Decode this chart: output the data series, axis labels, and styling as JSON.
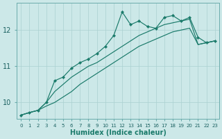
{
  "xlabel": "Humidex (Indice chaleur)",
  "background_color": "#cce8e8",
  "line_color": "#1a7a6a",
  "grid_color": "#aad0d0",
  "tick_label_color": "#1a6060",
  "xlim": [
    -0.5,
    23.5
  ],
  "ylim": [
    9.55,
    12.75
  ],
  "x": [
    0,
    1,
    2,
    3,
    4,
    5,
    6,
    7,
    8,
    9,
    10,
    11,
    12,
    13,
    14,
    15,
    16,
    17,
    18,
    19,
    20,
    21,
    22,
    23
  ],
  "line_zigzag": [
    9.65,
    9.72,
    9.78,
    10.0,
    10.6,
    10.7,
    10.95,
    11.1,
    11.2,
    11.35,
    11.55,
    11.85,
    12.5,
    12.15,
    12.25,
    12.1,
    12.05,
    12.35,
    12.4,
    12.25,
    12.35,
    11.8,
    11.65,
    11.7
  ],
  "line_mid": [
    9.65,
    9.72,
    9.78,
    10.0,
    10.3,
    10.5,
    10.7,
    10.85,
    11.0,
    11.1,
    11.25,
    11.4,
    11.55,
    11.7,
    11.85,
    11.95,
    12.05,
    12.15,
    12.2,
    12.25,
    12.3,
    11.6,
    11.65,
    11.7
  ],
  "line_low": [
    9.65,
    9.72,
    9.78,
    9.9,
    10.0,
    10.15,
    10.3,
    10.5,
    10.65,
    10.8,
    10.95,
    11.1,
    11.25,
    11.4,
    11.55,
    11.65,
    11.75,
    11.85,
    11.95,
    12.0,
    12.05,
    11.6,
    11.65,
    11.7
  ],
  "yticks": [
    10,
    11,
    12
  ],
  "xticks": [
    0,
    1,
    2,
    3,
    4,
    5,
    6,
    7,
    8,
    9,
    10,
    11,
    12,
    13,
    14,
    15,
    16,
    17,
    18,
    19,
    20,
    21,
    22,
    23
  ]
}
